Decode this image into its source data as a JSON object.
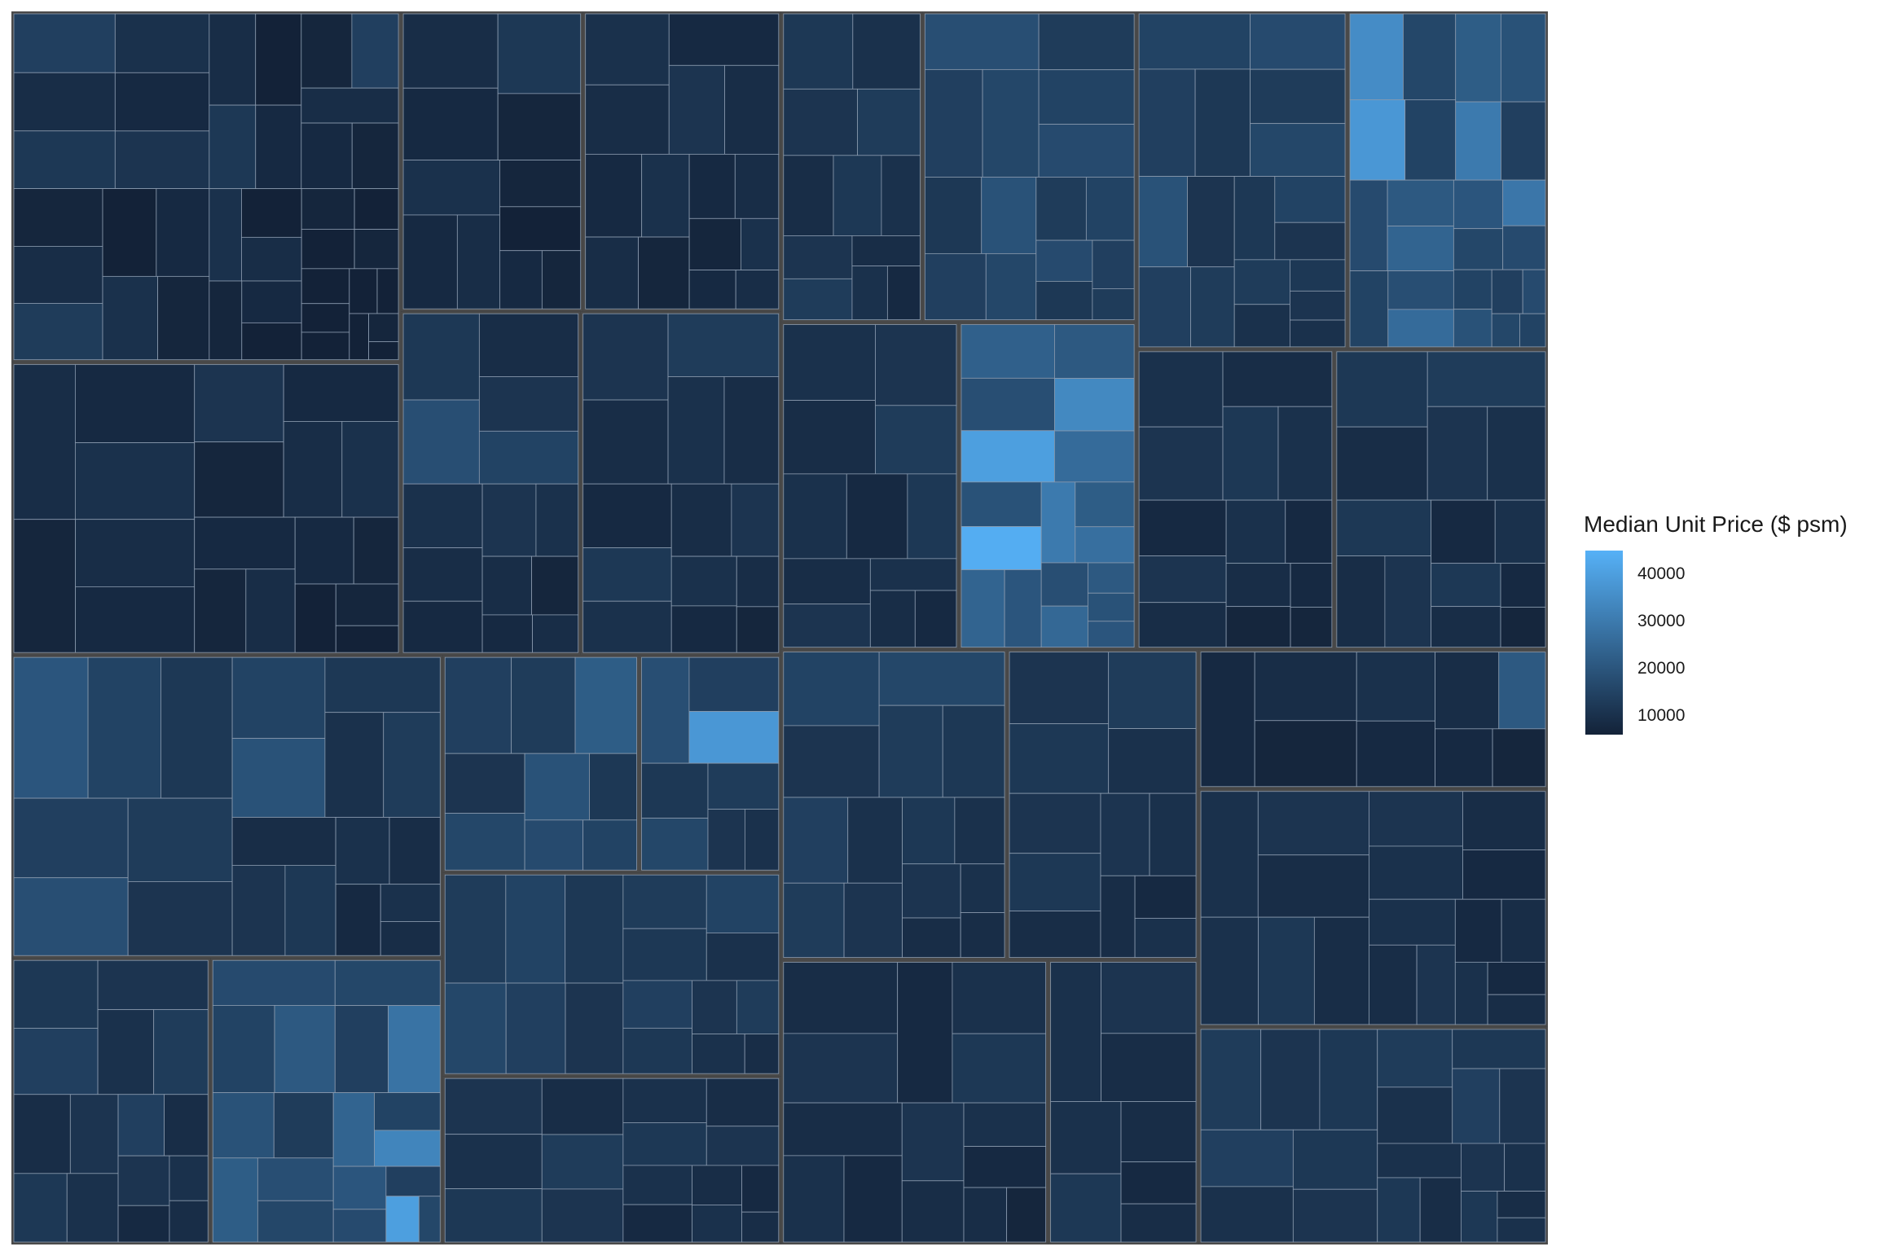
{
  "chart_data": {
    "type": "treemap",
    "legend": {
      "title": "Median Unit Price ($ psm)",
      "ticks": [
        10000,
        20000,
        30000,
        40000
      ],
      "tick_labels": [
        "10000",
        "20000",
        "30000",
        "40000"
      ],
      "range": [
        6000,
        45000
      ],
      "low_color": "#132238",
      "high_color": "#56b1f7",
      "placement": "right"
    },
    "groups": [
      {
        "id": "g1",
        "weight": 11.5,
        "tiles": [
          14,
          9,
          12,
          10,
          8,
          11,
          7,
          9,
          13,
          6,
          8,
          10,
          7,
          9,
          6,
          12,
          8,
          7,
          14,
          9,
          8,
          7,
          10,
          6,
          9,
          7,
          8,
          6,
          7,
          6,
          5,
          7,
          6,
          5,
          6,
          5,
          6,
          5,
          7,
          6
        ]
      },
      {
        "id": "g2",
        "weight": 9.6,
        "tiles": [
          9,
          8,
          10,
          7,
          9,
          8,
          11,
          7,
          8,
          9,
          10,
          8,
          7,
          9,
          8,
          7,
          6,
          7,
          6
        ]
      },
      {
        "id": "g3",
        "weight": 4.6,
        "tiles": [
          9,
          8,
          12,
          7,
          10,
          8,
          9,
          7,
          6,
          8,
          7
        ]
      },
      {
        "id": "g4",
        "weight": 5.0,
        "tiles": [
          10,
          9,
          8,
          11,
          9,
          8,
          10,
          9,
          7,
          8,
          9,
          7,
          10,
          8,
          9
        ]
      },
      {
        "id": "g5",
        "weight": 5.2,
        "tiles": [
          12,
          18,
          9,
          11,
          15,
          10,
          9,
          8,
          11,
          10,
          9,
          7,
          8,
          9
        ]
      },
      {
        "id": "g6",
        "weight": 5.8,
        "tiles": [
          11,
          9,
          13,
          10,
          9,
          8,
          12,
          10,
          9,
          11,
          10,
          8,
          9,
          7
        ]
      },
      {
        "id": "g7",
        "weight": 11.0,
        "tiles": [
          20,
          15,
          12,
          14,
          18,
          13,
          11,
          15,
          19,
          12,
          10,
          13,
          9,
          11,
          12,
          10,
          9,
          8,
          10,
          9
        ]
      },
      {
        "id": "g8",
        "weight": 4.8,
        "tiles": [
          12,
          14,
          11,
          10,
          13,
          9,
          11,
          12,
          10,
          14,
          9,
          11,
          8,
          10,
          9
        ]
      },
      {
        "id": "g9",
        "weight": 5.6,
        "tiles": [
          17,
          15,
          21,
          16,
          14,
          28,
          19,
          13,
          22,
          18,
          16,
          24,
          15,
          33,
          20,
          17,
          14,
          40,
          16
        ]
      },
      {
        "id": "g10",
        "weight": 3.6,
        "tiles": [
          14,
          13,
          22,
          11,
          16,
          19,
          12,
          17,
          15
        ]
      },
      {
        "id": "g11",
        "weight": 2.6,
        "tiles": [
          18,
          14,
          38,
          12,
          16,
          13,
          11,
          10
        ]
      },
      {
        "id": "g12",
        "weight": 5.8,
        "tiles": [
          13,
          15,
          12,
          16,
          14,
          11,
          13,
          12,
          15,
          10,
          14,
          12,
          11,
          13,
          10,
          9
        ]
      },
      {
        "id": "g13",
        "weight": 4.8,
        "tiles": [
          11,
          10,
          12,
          9,
          13,
          11,
          10,
          12,
          9,
          11,
          10,
          8,
          9,
          10,
          8,
          9
        ]
      },
      {
        "id": "g14",
        "weight": 3.7,
        "tiles": [
          12,
          10,
          11,
          13,
          9,
          12,
          10,
          11,
          13,
          9,
          10,
          8
        ]
      },
      {
        "id": "g15",
        "weight": 5.6,
        "tiles": [
          18,
          14,
          16,
          13,
          15,
          17,
          12,
          19,
          14,
          16,
          13,
          15,
          17,
          12,
          14,
          13
        ]
      },
      {
        "id": "g16",
        "weight": 4.9,
        "tiles": [
          10,
          9,
          11,
          13,
          10,
          8,
          12,
          9,
          11,
          10,
          9,
          8
        ]
      },
      {
        "id": "g17",
        "weight": 4.9,
        "tiles": [
          23,
          18,
          40,
          21,
          34,
          26,
          19,
          44,
          24,
          20,
          30,
          22,
          27,
          18,
          25,
          21,
          19,
          20
        ]
      },
      {
        "id": "g18",
        "weight": 6.0,
        "tiles": [
          15,
          14,
          12,
          17,
          13,
          16,
          19,
          11,
          14,
          13,
          12,
          15,
          11,
          13,
          10,
          12,
          11,
          10
        ]
      },
      {
        "id": "g19",
        "weight": 5.7,
        "tiles": [
          35,
          16,
          38,
          15,
          22,
          19,
          30,
          14,
          17,
          21,
          24,
          15,
          18,
          26,
          20,
          16,
          29,
          17,
          15,
          19,
          14,
          17,
          16,
          15
        ]
      },
      {
        "id": "g20",
        "weight": 5.0,
        "tiles": [
          10,
          11,
          9,
          12,
          10,
          8,
          11,
          9,
          10,
          8,
          9,
          7,
          8,
          7
        ]
      },
      {
        "id": "g21",
        "weight": 5.4,
        "tiles": [
          12,
          9,
          13,
          11,
          10,
          12,
          9,
          11,
          8,
          10,
          12,
          9,
          8,
          7
        ]
      },
      {
        "id": "g22",
        "weight": 5.9,
        "tiles": [
          15,
          11,
          16,
          13,
          12,
          14,
          10,
          13,
          11,
          12,
          10,
          11,
          9,
          10,
          9
        ]
      },
      {
        "id": "g23",
        "weight": 5.0,
        "tiles": [
          11,
          12,
          13,
          10,
          11,
          12,
          9,
          11,
          10,
          9,
          8,
          10
        ]
      },
      {
        "id": "g24",
        "weight": 6.4,
        "tiles": [
          9,
          11,
          8,
          10,
          12,
          9,
          10,
          8,
          11,
          9,
          10,
          8,
          9,
          7
        ]
      },
      {
        "id": "g25",
        "weight": 3.6,
        "tiles": [
          10,
          11,
          9,
          10,
          12,
          9,
          8,
          9
        ]
      },
      {
        "id": "g26",
        "weight": 4.1,
        "tiles": [
          8,
          9,
          7,
          10,
          8,
          9,
          21,
          8,
          7
        ]
      },
      {
        "id": "g27",
        "weight": 7.0,
        "tiles": [
          10,
          11,
          9,
          10,
          12,
          9,
          11,
          10,
          9,
          8,
          10,
          9,
          11,
          8,
          9,
          10,
          8,
          9
        ]
      },
      {
        "id": "g28",
        "weight": 6.4,
        "tiles": [
          13,
          11,
          12,
          14,
          10,
          12,
          11,
          13,
          10,
          12,
          14,
          11,
          10,
          12,
          9,
          11,
          10,
          12,
          9,
          10
        ]
      }
    ]
  }
}
